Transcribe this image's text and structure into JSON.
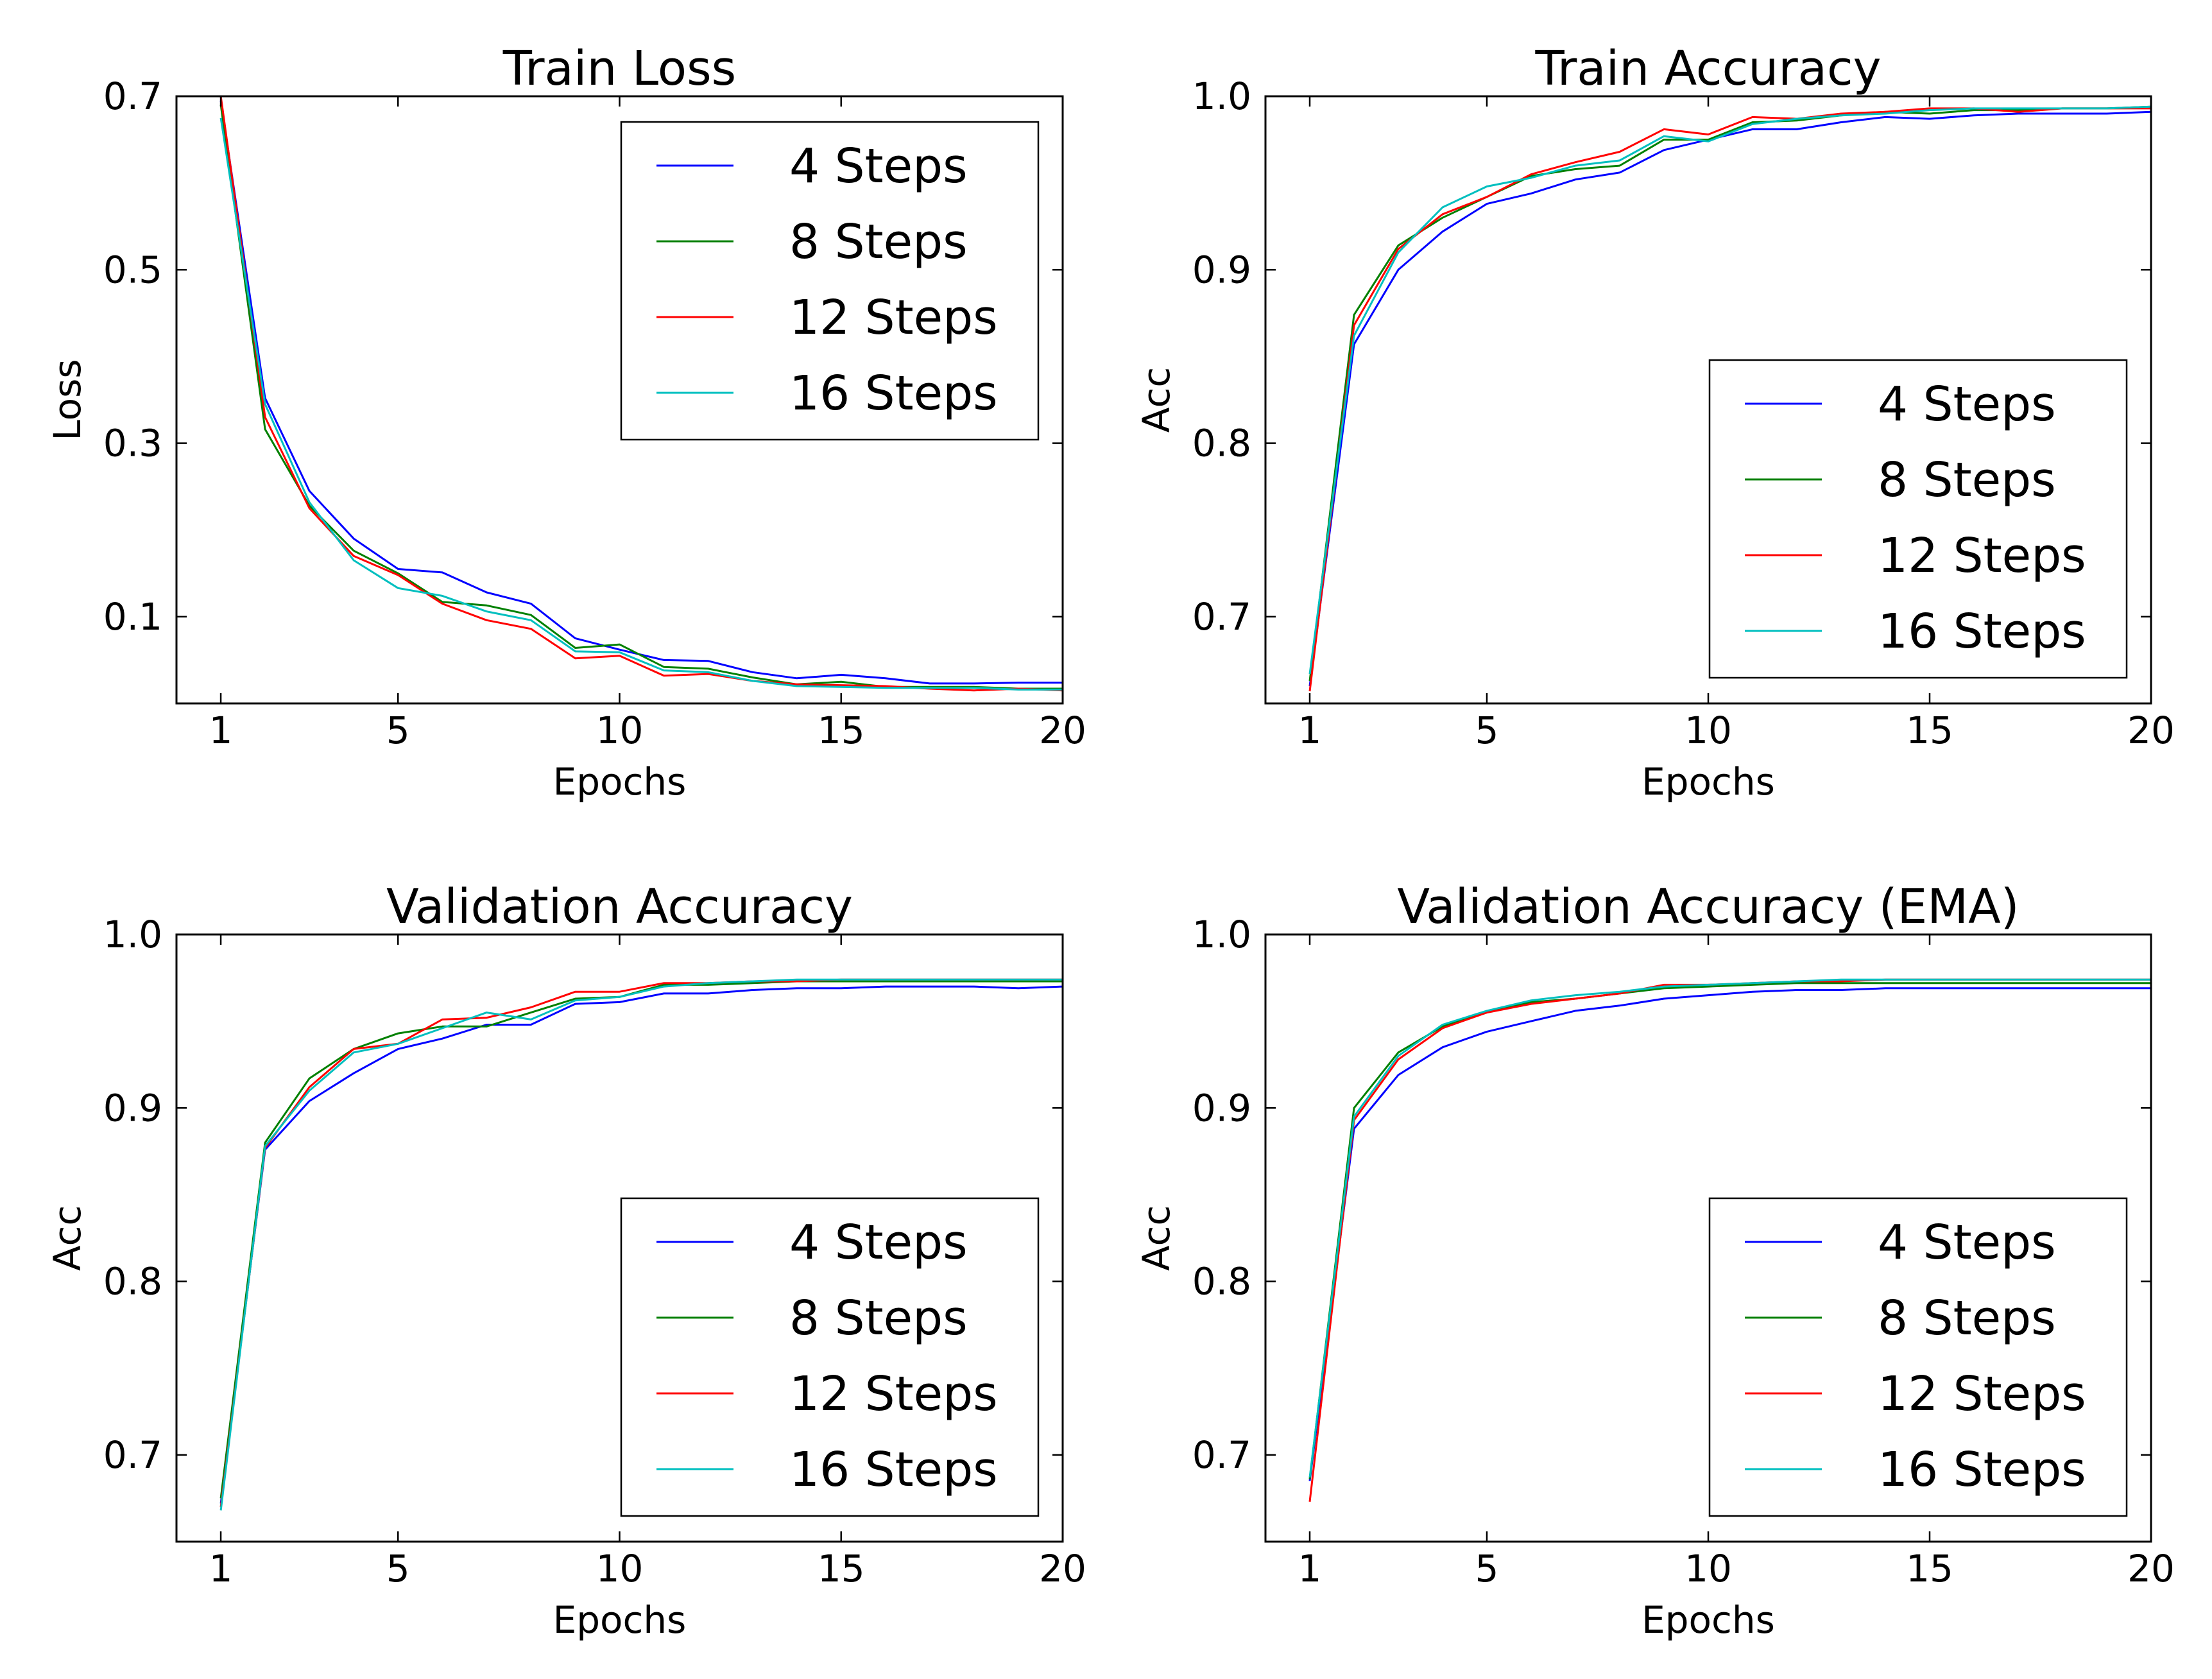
{
  "chart_data": [
    {
      "type": "line",
      "title": "Train Loss",
      "xlabel": "Epochs",
      "ylabel": "Loss",
      "xlim": [
        0,
        20
      ],
      "ylim": [
        0,
        0.7
      ],
      "xticks": [
        1,
        5,
        10,
        15,
        20
      ],
      "yticks": [
        0.1,
        0.3,
        0.5,
        0.7
      ],
      "ytick_labels": [
        "0.1",
        "0.3",
        "0.5",
        "0.7"
      ],
      "legend_position": "top-right",
      "series": [
        {
          "name": "4 Steps",
          "color": "#0000ff",
          "x": [
            1,
            2,
            3,
            4,
            5,
            6,
            7,
            8,
            9,
            10,
            11,
            12,
            13,
            14,
            15,
            16,
            17,
            18,
            19,
            20
          ],
          "values": [
            0.695,
            0.352,
            0.245,
            0.19,
            0.155,
            0.151,
            0.128,
            0.115,
            0.075,
            0.062,
            0.05,
            0.049,
            0.036,
            0.029,
            0.033,
            0.029,
            0.023,
            0.023,
            0.024,
            0.024
          ]
        },
        {
          "name": "8 Steps",
          "color": "#008000",
          "x": [
            1,
            2,
            3,
            4,
            5,
            6,
            7,
            8,
            9,
            10,
            11,
            12,
            13,
            14,
            15,
            16,
            17,
            18,
            19,
            20
          ],
          "values": [
            0.69,
            0.316,
            0.228,
            0.176,
            0.15,
            0.117,
            0.113,
            0.102,
            0.064,
            0.068,
            0.042,
            0.04,
            0.03,
            0.022,
            0.025,
            0.019,
            0.019,
            0.019,
            0.017,
            0.017
          ]
        },
        {
          "name": "12 Steps",
          "color": "#ff0000",
          "x": [
            1,
            2,
            3,
            4,
            5,
            6,
            7,
            8,
            9,
            10,
            11,
            12,
            13,
            14,
            15,
            16,
            17,
            18,
            19,
            20
          ],
          "values": [
            0.7,
            0.33,
            0.225,
            0.17,
            0.148,
            0.115,
            0.096,
            0.086,
            0.052,
            0.055,
            0.032,
            0.034,
            0.026,
            0.022,
            0.021,
            0.02,
            0.017,
            0.015,
            0.017,
            0.015
          ]
        },
        {
          "name": "16 Steps",
          "color": "#00bfbf",
          "x": [
            1,
            2,
            3,
            4,
            5,
            6,
            7,
            8,
            9,
            10,
            11,
            12,
            13,
            14,
            15,
            16,
            17,
            18,
            19,
            20
          ],
          "values": [
            0.675,
            0.345,
            0.232,
            0.165,
            0.133,
            0.124,
            0.106,
            0.096,
            0.06,
            0.059,
            0.038,
            0.036,
            0.026,
            0.02,
            0.019,
            0.018,
            0.018,
            0.018,
            0.016,
            0.016
          ]
        }
      ]
    },
    {
      "type": "line",
      "title": "Train Accuracy",
      "xlabel": "Epochs",
      "ylabel": "Acc",
      "xlim": [
        0,
        20
      ],
      "ylim": [
        0.65,
        1.0
      ],
      "xticks": [
        1,
        5,
        10,
        15,
        20
      ],
      "yticks": [
        0.7,
        0.8,
        0.9,
        1.0
      ],
      "ytick_labels": [
        "0.7",
        "0.8",
        "0.9",
        "1.0"
      ],
      "legend_position": "lower-right",
      "series": [
        {
          "name": "4 Steps",
          "color": "#0000ff",
          "x": [
            1,
            2,
            3,
            4,
            5,
            6,
            7,
            8,
            9,
            10,
            11,
            12,
            13,
            14,
            15,
            16,
            17,
            18,
            19,
            20
          ],
          "values": [
            0.66,
            0.857,
            0.9,
            0.922,
            0.938,
            0.944,
            0.952,
            0.956,
            0.969,
            0.975,
            0.981,
            0.981,
            0.985,
            0.988,
            0.987,
            0.989,
            0.99,
            0.99,
            0.99,
            0.991
          ]
        },
        {
          "name": "8 Steps",
          "color": "#008000",
          "x": [
            1,
            2,
            3,
            4,
            5,
            6,
            7,
            8,
            9,
            10,
            11,
            12,
            13,
            14,
            15,
            16,
            17,
            18,
            19,
            20
          ],
          "values": [
            0.663,
            0.874,
            0.914,
            0.93,
            0.942,
            0.954,
            0.958,
            0.96,
            0.975,
            0.975,
            0.985,
            0.986,
            0.989,
            0.991,
            0.99,
            0.992,
            0.992,
            0.993,
            0.993,
            0.994
          ]
        },
        {
          "name": "12 Steps",
          "color": "#ff0000",
          "x": [
            1,
            2,
            3,
            4,
            5,
            6,
            7,
            8,
            9,
            10,
            11,
            12,
            13,
            14,
            15,
            16,
            17,
            18,
            19,
            20
          ],
          "values": [
            0.657,
            0.868,
            0.912,
            0.932,
            0.942,
            0.955,
            0.962,
            0.968,
            0.981,
            0.978,
            0.988,
            0.987,
            0.99,
            0.991,
            0.993,
            0.993,
            0.991,
            0.993,
            0.993,
            0.993
          ]
        },
        {
          "name": "16 Steps",
          "color": "#00bfbf",
          "x": [
            1,
            2,
            3,
            4,
            5,
            6,
            7,
            8,
            9,
            10,
            11,
            12,
            13,
            14,
            15,
            16,
            17,
            18,
            19,
            20
          ],
          "values": [
            0.667,
            0.862,
            0.91,
            0.936,
            0.948,
            0.953,
            0.96,
            0.963,
            0.977,
            0.974,
            0.984,
            0.987,
            0.989,
            0.99,
            0.992,
            0.993,
            0.993,
            0.993,
            0.993,
            0.994
          ]
        }
      ]
    },
    {
      "type": "line",
      "title": "Validation Accuracy",
      "xlabel": "Epochs",
      "ylabel": "Acc",
      "xlim": [
        0,
        20
      ],
      "ylim": [
        0.65,
        1.0
      ],
      "xticks": [
        1,
        5,
        10,
        15,
        20
      ],
      "yticks": [
        0.7,
        0.8,
        0.9,
        1.0
      ],
      "ytick_labels": [
        "0.7",
        "0.8",
        "0.9",
        "1.0"
      ],
      "legend_position": "lower-right",
      "series": [
        {
          "name": "4 Steps",
          "color": "#0000ff",
          "x": [
            1,
            2,
            3,
            4,
            5,
            6,
            7,
            8,
            9,
            10,
            11,
            12,
            13,
            14,
            15,
            16,
            17,
            18,
            19,
            20
          ],
          "values": [
            0.672,
            0.876,
            0.904,
            0.92,
            0.934,
            0.94,
            0.948,
            0.948,
            0.96,
            0.961,
            0.966,
            0.966,
            0.968,
            0.969,
            0.969,
            0.97,
            0.97,
            0.97,
            0.969,
            0.97
          ]
        },
        {
          "name": "8 Steps",
          "color": "#008000",
          "x": [
            1,
            2,
            3,
            4,
            5,
            6,
            7,
            8,
            9,
            10,
            11,
            12,
            13,
            14,
            15,
            16,
            17,
            18,
            19,
            20
          ],
          "values": [
            0.675,
            0.88,
            0.917,
            0.934,
            0.943,
            0.947,
            0.947,
            0.955,
            0.963,
            0.964,
            0.971,
            0.971,
            0.972,
            0.973,
            0.973,
            0.973,
            0.973,
            0.973,
            0.973,
            0.973
          ]
        },
        {
          "name": "12 Steps",
          "color": "#ff0000",
          "x": [
            1,
            2,
            3,
            4,
            5,
            6,
            7,
            8,
            9,
            10,
            11,
            12,
            13,
            14,
            15,
            16,
            17,
            18,
            19,
            20
          ],
          "values": [
            0.67,
            0.877,
            0.912,
            0.934,
            0.937,
            0.951,
            0.952,
            0.958,
            0.967,
            0.967,
            0.972,
            0.972,
            0.973,
            0.973,
            0.974,
            0.974,
            0.974,
            0.974,
            0.974,
            0.974
          ]
        },
        {
          "name": "16 Steps",
          "color": "#00bfbf",
          "x": [
            1,
            2,
            3,
            4,
            5,
            6,
            7,
            8,
            9,
            10,
            11,
            12,
            13,
            14,
            15,
            16,
            17,
            18,
            19,
            20
          ],
          "values": [
            0.668,
            0.878,
            0.91,
            0.932,
            0.937,
            0.946,
            0.955,
            0.951,
            0.962,
            0.964,
            0.97,
            0.972,
            0.973,
            0.974,
            0.974,
            0.974,
            0.974,
            0.974,
            0.974,
            0.974
          ]
        }
      ]
    },
    {
      "type": "line",
      "title": "Validation Accuracy (EMA)",
      "xlabel": "Epochs",
      "ylabel": "Acc",
      "xlim": [
        0,
        20
      ],
      "ylim": [
        0.65,
        1.0
      ],
      "xticks": [
        1,
        5,
        10,
        15,
        20
      ],
      "yticks": [
        0.7,
        0.8,
        0.9,
        1.0
      ],
      "ytick_labels": [
        "0.7",
        "0.8",
        "0.9",
        "1.0"
      ],
      "legend_position": "lower-right",
      "series": [
        {
          "name": "4 Steps",
          "color": "#0000ff",
          "x": [
            1,
            2,
            3,
            4,
            5,
            6,
            7,
            8,
            9,
            10,
            11,
            12,
            13,
            14,
            15,
            16,
            17,
            18,
            19,
            20
          ],
          "values": [
            0.685,
            0.888,
            0.919,
            0.935,
            0.944,
            0.95,
            0.956,
            0.959,
            0.963,
            0.965,
            0.967,
            0.968,
            0.968,
            0.969,
            0.969,
            0.969,
            0.969,
            0.969,
            0.969,
            0.969
          ]
        },
        {
          "name": "8 Steps",
          "color": "#008000",
          "x": [
            1,
            2,
            3,
            4,
            5,
            6,
            7,
            8,
            9,
            10,
            11,
            12,
            13,
            14,
            15,
            16,
            17,
            18,
            19,
            20
          ],
          "values": [
            0.686,
            0.9,
            0.932,
            0.947,
            0.955,
            0.961,
            0.963,
            0.966,
            0.969,
            0.97,
            0.971,
            0.972,
            0.972,
            0.972,
            0.972,
            0.972,
            0.972,
            0.972,
            0.972,
            0.972
          ]
        },
        {
          "name": "12 Steps",
          "color": "#ff0000",
          "x": [
            1,
            2,
            3,
            4,
            5,
            6,
            7,
            8,
            9,
            10,
            11,
            12,
            13,
            14,
            15,
            16,
            17,
            18,
            19,
            20
          ],
          "values": [
            0.673,
            0.893,
            0.928,
            0.946,
            0.955,
            0.96,
            0.963,
            0.966,
            0.971,
            0.971,
            0.972,
            0.973,
            0.973,
            0.974,
            0.974,
            0.974,
            0.974,
            0.974,
            0.974,
            0.974
          ]
        },
        {
          "name": "16 Steps",
          "color": "#00bfbf",
          "x": [
            1,
            2,
            3,
            4,
            5,
            6,
            7,
            8,
            9,
            10,
            11,
            12,
            13,
            14,
            15,
            16,
            17,
            18,
            19,
            20
          ],
          "values": [
            0.687,
            0.895,
            0.93,
            0.948,
            0.956,
            0.962,
            0.965,
            0.967,
            0.97,
            0.971,
            0.972,
            0.973,
            0.974,
            0.974,
            0.974,
            0.974,
            0.974,
            0.974,
            0.974,
            0.974
          ]
        }
      ]
    }
  ]
}
